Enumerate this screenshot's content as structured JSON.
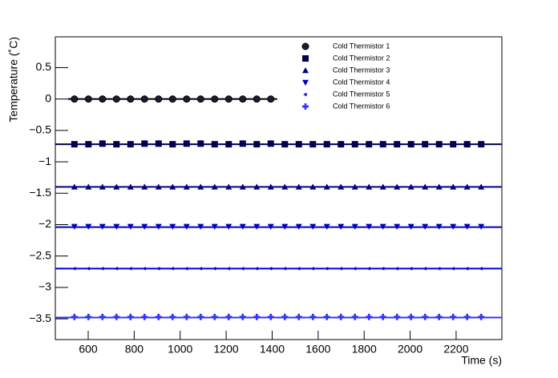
{
  "chart_data": {
    "type": "scatter",
    "x_label": "Time (s)",
    "y_label": "Temperature (˚C)",
    "x": [
      540,
      601,
      662,
      723,
      784,
      845,
      906,
      967,
      1028,
      1089,
      1150,
      1211,
      1272,
      1333,
      1394,
      1455,
      1516,
      1577,
      1638,
      1699,
      1760,
      1821,
      1882,
      1943,
      2004,
      2065,
      2126,
      2187,
      2248,
      2309
    ],
    "xlim": [
      457,
      2399
    ],
    "xticks": [
      600,
      800,
      1000,
      1200,
      1400,
      1600,
      1800,
      2000,
      2200
    ],
    "ylim": [
      -3.83,
      0.99
    ],
    "yticks": [
      {
        "value": -3.5,
        "label": "−3.5"
      },
      {
        "value": -3,
        "label": "−3"
      },
      {
        "value": -2.5,
        "label": "−2.5"
      },
      {
        "value": -2,
        "label": "−2"
      },
      {
        "value": -1.5,
        "label": "−1.5"
      },
      {
        "value": -1,
        "label": "−1"
      },
      {
        "value": -0.5,
        "label": "−0.5"
      },
      0,
      0.5
    ],
    "series": [
      {
        "name": "Cold Thermistor 1",
        "color": "#1c1c2e",
        "marker": "circle",
        "fit": 0,
        "values": [
          0,
          0,
          0,
          0,
          0,
          0,
          0,
          0,
          0,
          0,
          0,
          0,
          0,
          0,
          0,
          null,
          null,
          null,
          null,
          null,
          null,
          null,
          null,
          null,
          null,
          null,
          null,
          null,
          null,
          null
        ]
      },
      {
        "name": "Cold Thermistor 2",
        "color": "#000055",
        "marker": "square",
        "fit": -0.72,
        "values": [
          -0.72,
          -0.72,
          -0.71,
          -0.72,
          -0.72,
          -0.71,
          -0.71,
          -0.72,
          -0.71,
          -0.71,
          -0.72,
          -0.72,
          -0.71,
          -0.72,
          -0.71,
          -0.72,
          -0.72,
          -0.72,
          -0.72,
          -0.72,
          -0.72,
          -0.72,
          -0.72,
          -0.72,
          -0.72,
          -0.72,
          -0.72,
          -0.72,
          -0.72,
          -0.72
        ]
      },
      {
        "name": "Cold Thermistor 3",
        "color": "#00008b",
        "marker": "triangle-up",
        "fit": -1.4,
        "values": [
          -1.4,
          -1.4,
          -1.4,
          -1.4,
          -1.4,
          -1.4,
          -1.4,
          -1.4,
          -1.4,
          -1.4,
          -1.4,
          -1.4,
          -1.4,
          -1.4,
          -1.4,
          -1.4,
          -1.4,
          -1.4,
          -1.4,
          -1.4,
          -1.4,
          -1.4,
          -1.4,
          -1.4,
          -1.4,
          -1.4,
          -1.4,
          -1.4,
          -1.4,
          -1.4
        ]
      },
      {
        "name": "Cold Thermistor 4",
        "color": "#0000c0",
        "marker": "triangle-down",
        "fit": -2.04,
        "values": [
          -2.03,
          -2.03,
          -2.03,
          -2.03,
          -2.03,
          -2.03,
          -2.03,
          -2.03,
          -2.03,
          -2.03,
          -2.03,
          -2.03,
          -2.03,
          -2.03,
          -2.03,
          -2.03,
          -2.03,
          -2.03,
          -2.03,
          -2.03,
          -2.03,
          -2.03,
          -2.03,
          -2.03,
          -2.03,
          -2.03,
          -2.03,
          -2.03,
          -2.03,
          -2.03
        ]
      },
      {
        "name": "Cold Thermistor 5",
        "color": "#0000e0",
        "marker": "triangle-left",
        "fit": -2.7,
        "values": [
          -2.7,
          -2.7,
          -2.7,
          -2.7,
          -2.7,
          -2.7,
          -2.7,
          -2.7,
          -2.7,
          -2.7,
          -2.7,
          -2.7,
          -2.7,
          -2.7,
          -2.7,
          -2.7,
          -2.7,
          -2.7,
          -2.7,
          -2.7,
          -2.7,
          -2.7,
          -2.7,
          -2.7,
          -2.7,
          -2.7,
          -2.7,
          -2.7,
          -2.7,
          -2.7
        ]
      },
      {
        "name": "Cold Thermistor 6",
        "color": "#3333ff",
        "marker": "cross",
        "fit": -3.48,
        "values": [
          -3.47,
          -3.47,
          -3.47,
          -3.47,
          -3.47,
          -3.47,
          -3.47,
          -3.47,
          -3.47,
          -3.47,
          -3.47,
          -3.47,
          -3.47,
          -3.47,
          -3.47,
          -3.47,
          -3.47,
          -3.47,
          -3.47,
          -3.47,
          -3.47,
          -3.47,
          -3.47,
          -3.47,
          -3.47,
          -3.47,
          -3.47,
          -3.47,
          -3.47,
          -3.47
        ]
      }
    ]
  }
}
